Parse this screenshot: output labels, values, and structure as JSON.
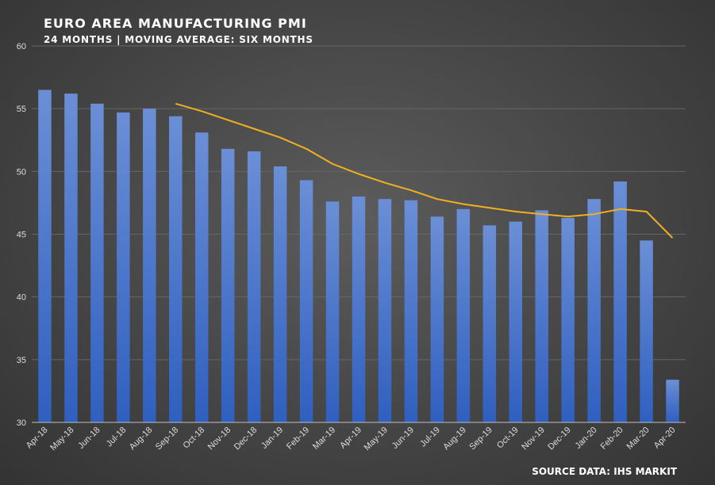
{
  "chart_data": {
    "type": "bar",
    "title": "EURO AREA MANUFACTURING PMI",
    "subtitle": "24 MONTHS | MOVING AVERAGE: SIX MONTHS",
    "source": "SOURCE DATA: IHS MARKIT",
    "categories": [
      "Apr-18",
      "May-18",
      "Jun-18",
      "Jul-18",
      "Aug-18",
      "Sep-18",
      "Oct-18",
      "Nov-18",
      "Dec-18",
      "Jan-19",
      "Feb-19",
      "Mar-19",
      "Apr-19",
      "May-19",
      "Jun-19",
      "Jul-19",
      "Aug-19",
      "Sep-19",
      "Oct-19",
      "Nov-19",
      "Dec-19",
      "Jan-20",
      "Feb-20",
      "Mar-20",
      "Apr-20"
    ],
    "values": [
      56.5,
      56.2,
      55.4,
      54.7,
      55.0,
      54.4,
      53.1,
      51.8,
      51.6,
      50.4,
      49.3,
      47.6,
      48.0,
      47.8,
      47.7,
      46.4,
      47.0,
      45.7,
      46.0,
      46.9,
      46.3,
      47.8,
      49.2,
      44.5,
      33.4
    ],
    "moving_average": [
      null,
      null,
      null,
      null,
      null,
      55.4,
      54.8,
      54.1,
      53.4,
      52.7,
      51.8,
      50.6,
      49.8,
      49.1,
      48.5,
      47.8,
      47.4,
      47.1,
      46.8,
      46.6,
      46.4,
      46.6,
      47.0,
      46.8,
      44.7
    ],
    "ylim": [
      30,
      60
    ],
    "yticks": [
      30,
      35,
      40,
      45,
      50,
      55,
      60
    ],
    "grid": true,
    "colors": {
      "bar_top": "#6b8fd6",
      "bar_bottom": "#2f5fbf",
      "line": "#f0b020",
      "grid": "#666666"
    }
  }
}
